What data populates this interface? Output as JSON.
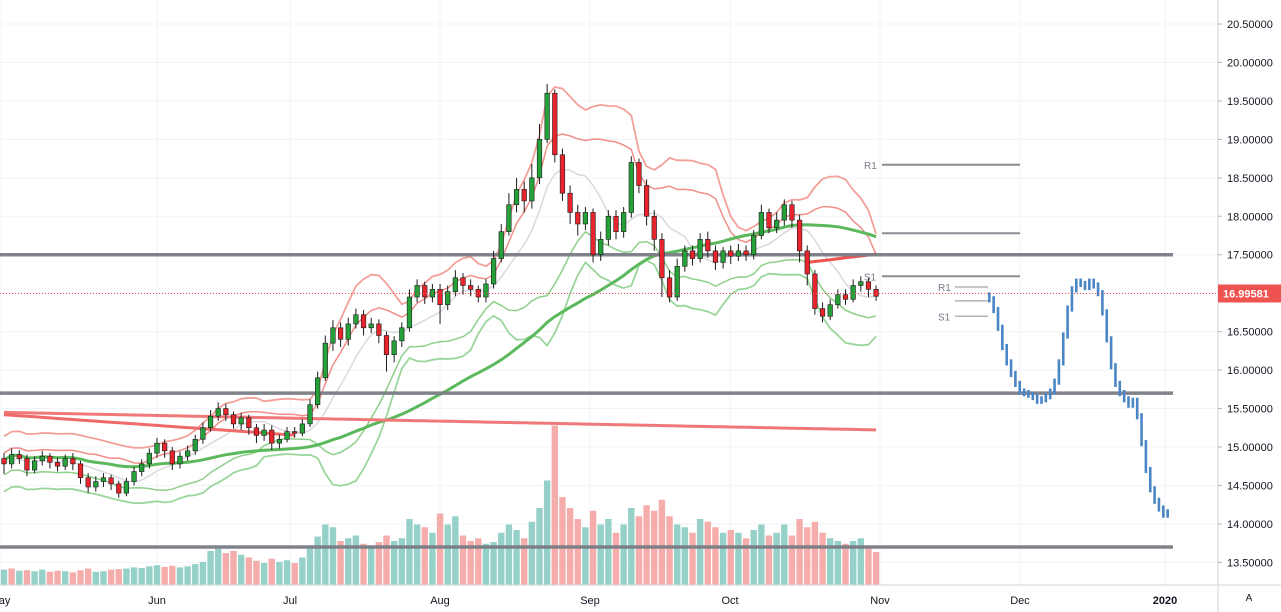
{
  "chart_data": {
    "type": "candlestick",
    "y_axis": {
      "ticks": [
        "20.50000",
        "20.00000",
        "19.50000",
        "19.00000",
        "18.50000",
        "18.00000",
        "17.50000",
        "17.00000",
        "16.50000",
        "16.00000",
        "15.50000",
        "15.00000",
        "14.50000",
        "14.00000",
        "13.50000"
      ],
      "range": [
        13.1,
        20.8
      ]
    },
    "x_axis": {
      "ticks": [
        "May",
        "Jun",
        "Jul",
        "Aug",
        "Sep",
        "Oct",
        "Nov",
        "Dec",
        "2020"
      ]
    },
    "last_price": "16.99581",
    "horizontal_levels": [
      17.5,
      15.7,
      13.7
    ],
    "pivots_current": {
      "R1": 18.67,
      "P": 17.78,
      "S1": 17.22
    },
    "pivots_recent": {
      "R1": 17.08,
      "P": 16.9,
      "S1": 16.7
    },
    "candles": [
      [
        14.85,
        14.78,
        14.92,
        14.65
      ],
      [
        14.78,
        14.9,
        14.98,
        14.72
      ],
      [
        14.9,
        14.85,
        14.96,
        14.78
      ],
      [
        14.85,
        14.7,
        14.9,
        14.62
      ],
      [
        14.7,
        14.82,
        14.88,
        14.66
      ],
      [
        14.82,
        14.88,
        14.95,
        14.76
      ],
      [
        14.88,
        14.8,
        14.92,
        14.72
      ],
      [
        14.8,
        14.75,
        14.86,
        14.68
      ],
      [
        14.75,
        14.85,
        14.9,
        14.7
      ],
      [
        14.85,
        14.78,
        14.92,
        14.7
      ],
      [
        14.78,
        14.6,
        14.82,
        14.52
      ],
      [
        14.6,
        14.48,
        14.66,
        14.4
      ],
      [
        14.48,
        14.55,
        14.62,
        14.42
      ],
      [
        14.55,
        14.6,
        14.66,
        14.48
      ],
      [
        14.6,
        14.52,
        14.64,
        14.44
      ],
      [
        14.52,
        14.4,
        14.56,
        14.34
      ],
      [
        14.4,
        14.55,
        14.6,
        14.36
      ],
      [
        14.55,
        14.68,
        14.74,
        14.5
      ],
      [
        14.68,
        14.78,
        14.84,
        14.62
      ],
      [
        14.78,
        14.92,
        14.98,
        14.72
      ],
      [
        14.92,
        15.05,
        15.12,
        14.86
      ],
      [
        15.05,
        14.95,
        15.1,
        14.86
      ],
      [
        14.95,
        14.78,
        15.0,
        14.7
      ],
      [
        14.78,
        14.88,
        14.94,
        14.72
      ],
      [
        14.88,
        14.95,
        15.02,
        14.82
      ],
      [
        14.95,
        15.1,
        15.16,
        14.9
      ],
      [
        15.1,
        15.25,
        15.32,
        15.04
      ],
      [
        15.25,
        15.4,
        15.48,
        15.2
      ],
      [
        15.4,
        15.5,
        15.58,
        15.34
      ],
      [
        15.5,
        15.42,
        15.56,
        15.34
      ],
      [
        15.42,
        15.3,
        15.46,
        15.24
      ],
      [
        15.3,
        15.38,
        15.44,
        15.22
      ],
      [
        15.38,
        15.25,
        15.42,
        15.16
      ],
      [
        15.25,
        15.15,
        15.3,
        15.05
      ],
      [
        15.15,
        15.22,
        15.3,
        15.08
      ],
      [
        15.22,
        15.05,
        15.28,
        14.96
      ],
      [
        15.05,
        15.1,
        15.16,
        14.98
      ],
      [
        15.1,
        15.2,
        15.26,
        15.06
      ],
      [
        15.2,
        15.18,
        15.26,
        15.12
      ],
      [
        15.18,
        15.3,
        15.36,
        15.14
      ],
      [
        15.3,
        15.55,
        15.62,
        15.26
      ],
      [
        15.55,
        15.9,
        15.98,
        15.5
      ],
      [
        15.9,
        16.35,
        16.45,
        15.86
      ],
      [
        16.35,
        16.55,
        16.65,
        16.25
      ],
      [
        16.55,
        16.4,
        16.62,
        16.3
      ],
      [
        16.4,
        16.6,
        16.68,
        16.32
      ],
      [
        16.6,
        16.72,
        16.8,
        16.54
      ],
      [
        16.72,
        16.55,
        16.78,
        16.45
      ],
      [
        16.55,
        16.6,
        16.68,
        16.48
      ],
      [
        16.6,
        16.45,
        16.66,
        16.35
      ],
      [
        16.45,
        16.2,
        16.5,
        15.98
      ],
      [
        16.2,
        16.38,
        16.44,
        16.1
      ],
      [
        16.38,
        16.55,
        16.62,
        16.3
      ],
      [
        16.55,
        16.95,
        17.05,
        16.5
      ],
      [
        16.95,
        17.1,
        17.18,
        16.88
      ],
      [
        17.1,
        16.95,
        17.15,
        16.86
      ],
      [
        16.95,
        17.05,
        17.12,
        16.88
      ],
      [
        17.05,
        16.85,
        17.12,
        16.6
      ],
      [
        16.85,
        17.02,
        17.1,
        16.78
      ],
      [
        17.02,
        17.2,
        17.3,
        16.96
      ],
      [
        17.2,
        17.1,
        17.26,
        16.98
      ],
      [
        17.1,
        17.05,
        17.18,
        16.96
      ],
      [
        17.05,
        16.95,
        17.1,
        16.88
      ],
      [
        16.95,
        17.12,
        17.18,
        16.88
      ],
      [
        17.12,
        17.45,
        17.55,
        17.06
      ],
      [
        17.45,
        17.8,
        17.9,
        17.4
      ],
      [
        17.8,
        18.15,
        18.3,
        17.75
      ],
      [
        18.15,
        18.35,
        18.5,
        18.05
      ],
      [
        18.35,
        18.2,
        18.45,
        18.05
      ],
      [
        18.2,
        18.5,
        18.68,
        18.1
      ],
      [
        18.5,
        19.0,
        19.2,
        18.42
      ],
      [
        19.0,
        19.6,
        19.72,
        18.95
      ],
      [
        19.6,
        18.8,
        19.65,
        18.7
      ],
      [
        18.8,
        18.3,
        18.88,
        18.2
      ],
      [
        18.3,
        18.05,
        18.4,
        17.9
      ],
      [
        18.05,
        17.9,
        18.15,
        17.75
      ],
      [
        17.9,
        18.05,
        18.12,
        17.82
      ],
      [
        18.05,
        17.5,
        18.1,
        17.4
      ],
      [
        17.5,
        17.7,
        17.8,
        17.42
      ],
      [
        17.7,
        18.0,
        18.08,
        17.62
      ],
      [
        18.0,
        17.8,
        18.08,
        17.7
      ],
      [
        17.8,
        18.05,
        18.12,
        17.72
      ],
      [
        18.05,
        18.7,
        18.78,
        17.98
      ],
      [
        18.7,
        18.4,
        18.75,
        18.3
      ],
      [
        18.4,
        18.0,
        18.48,
        17.88
      ],
      [
        18.0,
        17.7,
        18.08,
        17.55
      ],
      [
        17.7,
        17.2,
        17.78,
        16.95
      ],
      [
        17.2,
        16.95,
        17.3,
        16.88
      ],
      [
        16.95,
        17.35,
        17.45,
        16.9
      ],
      [
        17.35,
        17.55,
        17.62,
        17.28
      ],
      [
        17.55,
        17.45,
        17.62,
        17.36
      ],
      [
        17.45,
        17.7,
        17.78,
        17.4
      ],
      [
        17.7,
        17.55,
        17.8,
        17.46
      ],
      [
        17.55,
        17.4,
        17.62,
        17.3
      ],
      [
        17.4,
        17.55,
        17.6,
        17.32
      ],
      [
        17.55,
        17.48,
        17.62,
        17.38
      ],
      [
        17.48,
        17.55,
        17.64,
        17.42
      ],
      [
        17.55,
        17.5,
        17.62,
        17.42
      ],
      [
        17.5,
        17.75,
        17.82,
        17.44
      ],
      [
        17.75,
        18.05,
        18.15,
        17.7
      ],
      [
        18.05,
        17.85,
        18.1,
        17.78
      ],
      [
        17.85,
        17.95,
        18.05,
        17.78
      ],
      [
        17.95,
        18.15,
        18.22,
        17.88
      ],
      [
        18.15,
        17.95,
        18.2,
        17.85
      ],
      [
        17.95,
        17.55,
        18.02,
        17.4
      ],
      [
        17.55,
        17.25,
        17.62,
        17.1
      ],
      [
        17.25,
        16.8,
        17.3,
        16.72
      ],
      [
        16.8,
        16.7,
        16.88,
        16.62
      ],
      [
        16.7,
        16.85,
        16.92,
        16.65
      ],
      [
        16.85,
        16.98,
        17.05,
        16.8
      ],
      [
        16.98,
        16.92,
        17.05,
        16.85
      ],
      [
        16.92,
        17.1,
        17.18,
        16.88
      ],
      [
        17.1,
        17.15,
        17.22,
        17.02
      ],
      [
        17.15,
        17.05,
        17.2,
        16.95
      ],
      [
        17.05,
        16.96,
        17.1,
        16.9
      ]
    ],
    "volume": [
      [
        0.28,
        1
      ],
      [
        0.3,
        0
      ],
      [
        0.26,
        1
      ],
      [
        0.27,
        0
      ],
      [
        0.25,
        1
      ],
      [
        0.28,
        1
      ],
      [
        0.24,
        0
      ],
      [
        0.26,
        0
      ],
      [
        0.25,
        1
      ],
      [
        0.23,
        0
      ],
      [
        0.27,
        0
      ],
      [
        0.3,
        0
      ],
      [
        0.24,
        1
      ],
      [
        0.25,
        1
      ],
      [
        0.28,
        0
      ],
      [
        0.29,
        0
      ],
      [
        0.3,
        1
      ],
      [
        0.32,
        1
      ],
      [
        0.31,
        1
      ],
      [
        0.34,
        1
      ],
      [
        0.36,
        1
      ],
      [
        0.33,
        0
      ],
      [
        0.35,
        0
      ],
      [
        0.32,
        1
      ],
      [
        0.34,
        1
      ],
      [
        0.38,
        1
      ],
      [
        0.42,
        1
      ],
      [
        0.62,
        1
      ],
      [
        0.68,
        1
      ],
      [
        0.58,
        0
      ],
      [
        0.62,
        0
      ],
      [
        0.55,
        1
      ],
      [
        0.5,
        0
      ],
      [
        0.44,
        0
      ],
      [
        0.4,
        1
      ],
      [
        0.48,
        0
      ],
      [
        0.42,
        1
      ],
      [
        0.45,
        1
      ],
      [
        0.4,
        0
      ],
      [
        0.5,
        1
      ],
      [
        0.72,
        1
      ],
      [
        0.88,
        1
      ],
      [
        1.1,
        1
      ],
      [
        1.05,
        1
      ],
      [
        0.8,
        0
      ],
      [
        0.85,
        1
      ],
      [
        0.9,
        1
      ],
      [
        0.75,
        0
      ],
      [
        0.7,
        1
      ],
      [
        0.78,
        0
      ],
      [
        0.9,
        0
      ],
      [
        0.8,
        1
      ],
      [
        0.85,
        1
      ],
      [
        1.2,
        1
      ],
      [
        1.1,
        1
      ],
      [
        1.05,
        0
      ],
      [
        0.95,
        1
      ],
      [
        1.3,
        0
      ],
      [
        1.1,
        1
      ],
      [
        1.25,
        1
      ],
      [
        0.9,
        0
      ],
      [
        0.8,
        0
      ],
      [
        0.85,
        0
      ],
      [
        0.75,
        1
      ],
      [
        0.78,
        1
      ],
      [
        0.95,
        1
      ],
      [
        1.1,
        1
      ],
      [
        1.0,
        1
      ],
      [
        0.85,
        0
      ],
      [
        1.15,
        1
      ],
      [
        1.4,
        1
      ],
      [
        1.9,
        1
      ],
      [
        2.9,
        0
      ],
      [
        1.6,
        0
      ],
      [
        1.4,
        0
      ],
      [
        1.2,
        0
      ],
      [
        1.05,
        1
      ],
      [
        1.35,
        0
      ],
      [
        1.1,
        1
      ],
      [
        1.2,
        1
      ],
      [
        0.95,
        0
      ],
      [
        1.1,
        1
      ],
      [
        1.4,
        1
      ],
      [
        1.25,
        0
      ],
      [
        1.45,
        0
      ],
      [
        1.35,
        0
      ],
      [
        1.55,
        0
      ],
      [
        1.25,
        0
      ],
      [
        1.1,
        1
      ],
      [
        1.05,
        1
      ],
      [
        0.95,
        0
      ],
      [
        1.2,
        1
      ],
      [
        1.15,
        0
      ],
      [
        1.05,
        0
      ],
      [
        0.95,
        1
      ],
      [
        1.0,
        0
      ],
      [
        0.95,
        1
      ],
      [
        0.85,
        0
      ],
      [
        1.0,
        1
      ],
      [
        1.1,
        1
      ],
      [
        0.9,
        0
      ],
      [
        0.95,
        1
      ],
      [
        1.1,
        1
      ],
      [
        0.9,
        0
      ],
      [
        1.2,
        0
      ],
      [
        1.05,
        0
      ],
      [
        1.15,
        0
      ],
      [
        0.95,
        0
      ],
      [
        0.85,
        1
      ],
      [
        0.8,
        1
      ],
      [
        0.75,
        0
      ],
      [
        0.8,
        1
      ],
      [
        0.85,
        1
      ],
      [
        0.7,
        0
      ],
      [
        0.6,
        0
      ]
    ],
    "projection": [
      16.92,
      16.78,
      16.55,
      16.3,
      16.1,
      15.95,
      15.82,
      15.72,
      15.7,
      15.68,
      15.65,
      15.6,
      15.62,
      15.66,
      15.72,
      15.85,
      16.1,
      16.45,
      16.8,
      17.05,
      17.15,
      17.12,
      17.08,
      17.15,
      17.1,
      17.0,
      16.75,
      16.4,
      16.05,
      15.82,
      15.7,
      15.62,
      15.55,
      15.6,
      15.4,
      15.05,
      14.7,
      14.45,
      14.3,
      14.2,
      14.12,
      14.15
    ]
  }
}
